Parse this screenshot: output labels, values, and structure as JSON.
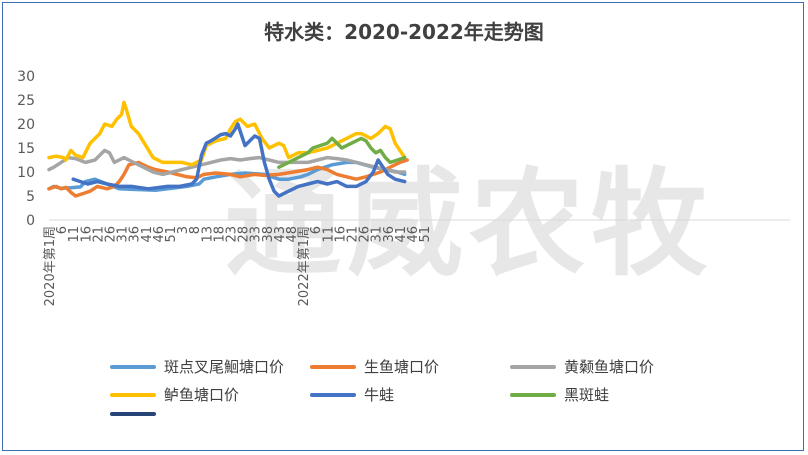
{
  "chart_data": {
    "type": "line",
    "title": "特水类：2020-2022年走势图",
    "ylim": [
      0,
      30
    ],
    "y_ticks": [
      0,
      5,
      10,
      15,
      20,
      25,
      30
    ],
    "x_ticks": [
      "2020年第1周",
      "6",
      "11",
      "16",
      "21",
      "26",
      "31",
      "36",
      "41",
      "46",
      "51",
      "3",
      "8",
      "13",
      "18",
      "23",
      "28",
      "33",
      "38",
      "43",
      "48",
      "2022年第1周",
      "6",
      "11",
      "16",
      "21",
      "26",
      "31",
      "36",
      "41",
      "46",
      "51"
    ],
    "week_range": [
      1,
      155
    ],
    "grid": false,
    "legend_position": "bottom",
    "watermark": "通威农牧",
    "series": [
      {
        "name": "斑点叉尾鮰塘口价",
        "color": "#5b9bd5",
        "points": [
          [
            1,
            6.5
          ],
          [
            3,
            7.0
          ],
          [
            6,
            6.6
          ],
          [
            10,
            6.7
          ],
          [
            14,
            6.9
          ],
          [
            16,
            8.0
          ],
          [
            20,
            8.5
          ],
          [
            25,
            7.5
          ],
          [
            30,
            6.5
          ],
          [
            40,
            6.3
          ],
          [
            45,
            6.2
          ],
          [
            50,
            6.5
          ],
          [
            58,
            7.0
          ],
          [
            63,
            7.5
          ],
          [
            65,
            8.5
          ],
          [
            70,
            9.0
          ],
          [
            76,
            9.5
          ],
          [
            82,
            9.8
          ],
          [
            90,
            9.5
          ],
          [
            96,
            8.5
          ],
          [
            100,
            8.5
          ],
          [
            105,
            9.0
          ],
          [
            108,
            9.5
          ],
          [
            112,
            10.5
          ],
          [
            118,
            11.5
          ],
          [
            124,
            12.0
          ],
          [
            128,
            12.0
          ],
          [
            135,
            11.0
          ],
          [
            140,
            10.5
          ],
          [
            145,
            10.0
          ],
          [
            148,
            9.5
          ]
        ]
      },
      {
        "name": "生鱼塘口价",
        "color": "#ed7d31",
        "points": [
          [
            1,
            6.5
          ],
          [
            4,
            7.0
          ],
          [
            6,
            6.5
          ],
          [
            8,
            6.8
          ],
          [
            10,
            5.8
          ],
          [
            12,
            5.0
          ],
          [
            15,
            5.5
          ],
          [
            18,
            6.0
          ],
          [
            21,
            7.0
          ],
          [
            25,
            6.5
          ],
          [
            28,
            7.0
          ],
          [
            30,
            8.0
          ],
          [
            32,
            9.5
          ],
          [
            34,
            11.5
          ],
          [
            38,
            12.0
          ],
          [
            42,
            11.0
          ],
          [
            45,
            10.5
          ],
          [
            50,
            10.0
          ],
          [
            54,
            9.5
          ],
          [
            58,
            9.0
          ],
          [
            62,
            8.8
          ],
          [
            65,
            9.5
          ],
          [
            70,
            9.8
          ],
          [
            76,
            9.5
          ],
          [
            80,
            9.0
          ],
          [
            86,
            9.5
          ],
          [
            90,
            9.3
          ],
          [
            96,
            9.5
          ],
          [
            102,
            10.0
          ],
          [
            108,
            10.5
          ],
          [
            112,
            11.0
          ],
          [
            116,
            10.5
          ],
          [
            120,
            9.5
          ],
          [
            124,
            9.0
          ],
          [
            128,
            8.5
          ],
          [
            132,
            9.0
          ],
          [
            138,
            10.0
          ],
          [
            142,
            11.0
          ],
          [
            146,
            12.0
          ],
          [
            149,
            12.5
          ]
        ]
      },
      {
        "name": "黄颡鱼塘口价",
        "color": "#a5a5a5",
        "points": [
          [
            1,
            10.5
          ],
          [
            3,
            11.0
          ],
          [
            6,
            12.0
          ],
          [
            9,
            13.0
          ],
          [
            12,
            12.8
          ],
          [
            16,
            12.0
          ],
          [
            20,
            12.5
          ],
          [
            22,
            13.5
          ],
          [
            24,
            14.5
          ],
          [
            26,
            14.0
          ],
          [
            28,
            12.0
          ],
          [
            32,
            13.0
          ],
          [
            36,
            12.0
          ],
          [
            40,
            11.0
          ],
          [
            44,
            10.0
          ],
          [
            48,
            9.5
          ],
          [
            52,
            10.0
          ],
          [
            56,
            10.5
          ],
          [
            60,
            11.0
          ],
          [
            64,
            11.5
          ],
          [
            68,
            12.0
          ],
          [
            72,
            12.5
          ],
          [
            76,
            12.8
          ],
          [
            80,
            12.5
          ],
          [
            84,
            12.8
          ],
          [
            88,
            13.0
          ],
          [
            92,
            12.5
          ],
          [
            96,
            12.0
          ],
          [
            100,
            12.0
          ],
          [
            104,
            12.0
          ],
          [
            108,
            12.0
          ],
          [
            112,
            12.5
          ],
          [
            116,
            13.0
          ],
          [
            120,
            12.8
          ],
          [
            124,
            12.5
          ],
          [
            128,
            12.0
          ],
          [
            132,
            11.5
          ],
          [
            136,
            11.0
          ],
          [
            140,
            10.5
          ],
          [
            144,
            10.0
          ],
          [
            148,
            10.0
          ]
        ]
      },
      {
        "name": "鲈鱼塘口价",
        "color": "#ffc000",
        "points": [
          [
            1,
            13.0
          ],
          [
            4,
            13.3
          ],
          [
            7,
            13.0
          ],
          [
            8,
            12.5
          ],
          [
            10,
            14.5
          ],
          [
            12,
            13.5
          ],
          [
            15,
            13.0
          ],
          [
            18,
            16.0
          ],
          [
            20,
            17.0
          ],
          [
            22,
            18.0
          ],
          [
            24,
            20.0
          ],
          [
            27,
            19.5
          ],
          [
            29,
            21.0
          ],
          [
            31,
            22.0
          ],
          [
            32,
            24.5
          ],
          [
            33,
            23.0
          ],
          [
            35,
            19.5
          ],
          [
            38,
            18.0
          ],
          [
            41,
            15.5
          ],
          [
            44,
            13.0
          ],
          [
            48,
            12.0
          ],
          [
            52,
            12.0
          ],
          [
            56,
            12.0
          ],
          [
            60,
            11.5
          ],
          [
            64,
            12.5
          ],
          [
            66,
            15.5
          ],
          [
            70,
            16.5
          ],
          [
            74,
            17.0
          ],
          [
            76,
            19.0
          ],
          [
            78,
            20.5
          ],
          [
            80,
            21.0
          ],
          [
            83,
            19.5
          ],
          [
            86,
            20.0
          ],
          [
            89,
            17.0
          ],
          [
            92,
            15.0
          ],
          [
            96,
            16.0
          ],
          [
            98,
            15.5
          ],
          [
            100,
            13.0
          ],
          [
            104,
            14.0
          ],
          [
            108,
            14.0
          ],
          [
            112,
            14.5
          ],
          [
            116,
            15.0
          ],
          [
            120,
            16.0
          ],
          [
            124,
            17.0
          ],
          [
            128,
            18.0
          ],
          [
            130,
            18.0
          ],
          [
            134,
            17.0
          ],
          [
            137,
            18.0
          ],
          [
            140,
            19.5
          ],
          [
            142,
            19.0
          ],
          [
            144,
            16.0
          ],
          [
            146,
            14.5
          ],
          [
            148,
            13.0
          ]
        ]
      },
      {
        "name": "牛蛙",
        "color": "#4472c4",
        "points": [
          [
            11,
            8.5
          ],
          [
            14,
            8.0
          ],
          [
            17,
            7.5
          ],
          [
            21,
            8.0
          ],
          [
            25,
            7.5
          ],
          [
            30,
            7.0
          ],
          [
            35,
            7.0
          ],
          [
            42,
            6.5
          ],
          [
            50,
            7.0
          ],
          [
            55,
            7.0
          ],
          [
            60,
            7.5
          ],
          [
            62,
            8.5
          ],
          [
            64,
            13.5
          ],
          [
            66,
            16.0
          ],
          [
            68,
            16.5
          ],
          [
            72,
            17.8
          ],
          [
            74,
            18.0
          ],
          [
            76,
            17.5
          ],
          [
            78,
            19.0
          ],
          [
            79,
            20.0
          ],
          [
            80,
            18.5
          ],
          [
            82,
            15.5
          ],
          [
            84,
            16.5
          ],
          [
            86,
            17.5
          ],
          [
            88,
            17.0
          ],
          [
            90,
            12.0
          ],
          [
            92,
            8.5
          ],
          [
            94,
            6.0
          ],
          [
            96,
            5.0
          ],
          [
            98,
            5.5
          ],
          [
            100,
            6.0
          ],
          [
            104,
            7.0
          ],
          [
            108,
            7.5
          ],
          [
            112,
            8.0
          ],
          [
            116,
            7.5
          ],
          [
            120,
            8.0
          ],
          [
            124,
            7.0
          ],
          [
            128,
            7.0
          ],
          [
            132,
            8.0
          ],
          [
            135,
            10.0
          ],
          [
            137,
            12.5
          ],
          [
            139,
            11.0
          ],
          [
            141,
            9.5
          ],
          [
            144,
            8.5
          ],
          [
            148,
            8.0
          ]
        ]
      },
      {
        "name": "黑斑蛙",
        "color": "#70ad47",
        "points": [
          [
            96,
            11.0
          ],
          [
            100,
            12.0
          ],
          [
            104,
            13.0
          ],
          [
            108,
            14.0
          ],
          [
            110,
            15.0
          ],
          [
            113,
            15.5
          ],
          [
            116,
            16.0
          ],
          [
            118,
            17.0
          ],
          [
            120,
            16.0
          ],
          [
            122,
            15.0
          ],
          [
            124,
            15.5
          ],
          [
            126,
            16.0
          ],
          [
            128,
            16.5
          ],
          [
            130,
            17.0
          ],
          [
            132,
            16.5
          ],
          [
            134,
            15.0
          ],
          [
            136,
            14.0
          ],
          [
            138,
            14.5
          ],
          [
            140,
            13.0
          ],
          [
            142,
            12.0
          ],
          [
            145,
            12.5
          ],
          [
            148,
            13.0
          ]
        ]
      },
      {
        "name": "",
        "color": "#264478",
        "points": []
      }
    ]
  }
}
